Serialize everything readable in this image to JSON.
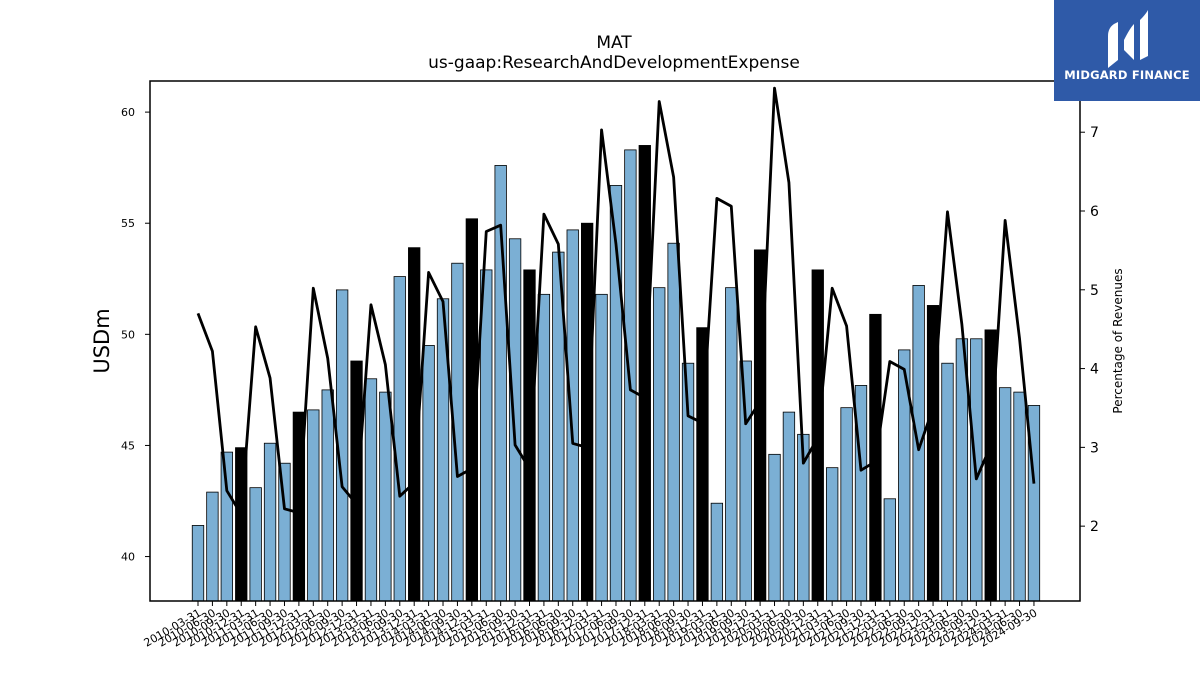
{
  "chart_data": {
    "type": "bar",
    "title": "MAT",
    "subtitle": "us-gaap:ResearchAndDevelopmentExpense",
    "ylabel": "USDm",
    "y2label": "Percentage of Revenues",
    "ylim": [
      38,
      61.4
    ],
    "y2lim": [
      1.05,
      7.65
    ],
    "yticks": [
      40,
      45,
      50,
      55,
      60
    ],
    "y2ticks": [
      2,
      3,
      4,
      5,
      6,
      7
    ],
    "categories": [
      "2010-03-31",
      "2010-06-30",
      "2010-09-30",
      "2010-12-31",
      "2011-03-31",
      "2011-06-30",
      "2011-09-30",
      "2011-12-31",
      "2012-03-31",
      "2012-06-30",
      "2012-09-30",
      "2012-12-31",
      "2013-03-31",
      "2013-06-30",
      "2013-09-30",
      "2013-12-31",
      "2014-03-31",
      "2014-06-30",
      "2014-09-30",
      "2014-12-31",
      "2015-03-31",
      "2015-06-30",
      "2015-09-30",
      "2015-12-31",
      "2016-03-31",
      "2016-06-30",
      "2016-09-30",
      "2016-12-31",
      "2017-03-31",
      "2017-06-30",
      "2017-09-30",
      "2017-12-31",
      "2018-03-31",
      "2018-06-30",
      "2018-09-30",
      "2018-12-31",
      "2019-03-31",
      "2019-06-30",
      "2019-09-30",
      "2019-12-31",
      "2020-03-31",
      "2020-06-30",
      "2020-09-30",
      "2020-12-31",
      "2021-03-31",
      "2021-06-30",
      "2021-09-30",
      "2021-12-31",
      "2022-03-31",
      "2022-06-30",
      "2022-09-30",
      "2022-12-31",
      "2023-03-31",
      "2023-06-30",
      "2023-09-30",
      "2023-12-31",
      "2024-03-31",
      "2024-06-30",
      "2024-09-30"
    ],
    "series": [
      {
        "kind": "bar",
        "axis": "left",
        "values": [
          41.4,
          42.9,
          44.7,
          44.9,
          43.1,
          45.1,
          44.2,
          46.5,
          46.6,
          47.5,
          52.0,
          48.8,
          48.0,
          47.4,
          52.6,
          53.9,
          49.5,
          51.6,
          53.2,
          55.2,
          52.9,
          57.6,
          54.3,
          52.9,
          51.8,
          53.7,
          54.7,
          55.0,
          51.8,
          56.7,
          58.3,
          58.5,
          52.1,
          54.1,
          48.7,
          50.3,
          42.4,
          52.1,
          48.8,
          53.8,
          44.6,
          46.5,
          45.5,
          52.9,
          44.0,
          46.7,
          47.7,
          50.9,
          42.6,
          49.3,
          52.2,
          51.3,
          48.7,
          49.8,
          49.8,
          50.2,
          47.6,
          47.4,
          46.8
        ],
        "fill": "#7bafd4",
        "q4_fill": "#000000"
      },
      {
        "kind": "line",
        "axis": "right",
        "values": [
          4.7,
          4.22,
          2.45,
          2.15,
          4.53,
          3.88,
          2.22,
          2.17,
          5.02,
          4.13,
          2.5,
          2.28,
          4.81,
          4.05,
          2.38,
          2.55,
          5.22,
          4.85,
          2.63,
          2.73,
          5.74,
          5.82,
          3.03,
          2.73,
          5.96,
          5.58,
          3.05,
          3.0,
          7.03,
          5.58,
          3.73,
          3.63,
          7.39,
          6.43,
          3.4,
          3.31,
          6.16,
          6.06,
          3.3,
          3.58,
          7.56,
          6.36,
          2.8,
          3.12,
          5.02,
          4.54,
          2.71,
          2.82,
          4.09,
          3.99,
          2.97,
          3.5,
          5.99,
          4.56,
          2.6,
          3.02,
          5.88,
          4.38,
          2.54
        ],
        "color": "#000000"
      }
    ],
    "grid": false,
    "legend": "none"
  },
  "logo": {
    "text": "MIDGARD FINANCE",
    "icon": "midgard-m-logo-icon"
  }
}
